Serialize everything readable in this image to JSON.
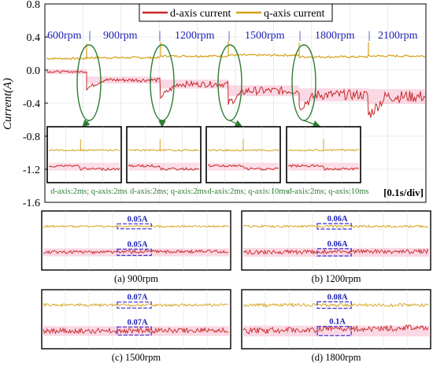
{
  "chart_data": {
    "type": "line",
    "main_plot": {
      "ylabel": "Current(A)",
      "y_ticks": [
        "0.8",
        "0.4",
        "0.0",
        "-0.4",
        "-0.8",
        "-1.2",
        "-1.6"
      ],
      "ylim": [
        -1.6,
        0.8
      ],
      "time_scale": "[0.1s/div]",
      "grid": true,
      "legend": {
        "placement": "top-center",
        "entries": [
          "d-axis current",
          "q-axis current"
        ]
      },
      "speed_labels": [
        "600rpm",
        "900rpm",
        "1200rpm",
        "1500rpm",
        "1800rpm",
        "2100rpm"
      ],
      "separator": "|",
      "series": [
        {
          "name": "q-axis current",
          "color": "#d4a017",
          "levels": [
            0.14,
            0.15,
            0.17,
            0.18,
            0.16,
            0.17
          ]
        },
        {
          "name": "d-axis current",
          "color": "#c62828",
          "levels": [
            -0.02,
            -0.12,
            -0.17,
            -0.25,
            -0.3,
            -0.32
          ]
        }
      ],
      "transient_peak_d": [
        -0.22,
        -0.32,
        -0.4,
        -0.45,
        -0.55
      ],
      "zoom_insets": [
        {
          "caption": "d-axis:2ms; q-axis:2ms"
        },
        {
          "caption": "d-axis:2ms; q-axis:2ms"
        },
        {
          "caption": "d-axis:2ms; q-axis:10ms"
        },
        {
          "caption": "d-axis:2ms; q-axis:10ms"
        }
      ]
    },
    "ripple_panels": [
      {
        "caption": "(a) 900rpm",
        "q_ripple": "0.05A",
        "d_ripple": "0.05A"
      },
      {
        "caption": "(b) 1200rpm",
        "q_ripple": "0.06A",
        "d_ripple": "0.06A"
      },
      {
        "caption": "(c) 1500rpm",
        "q_ripple": "0.07A",
        "d_ripple": "0.07A"
      },
      {
        "caption": "(d) 1800rpm",
        "q_ripple": "0.08A",
        "d_ripple": "0.1A"
      }
    ]
  },
  "colors": {
    "d_axis": "#c62828",
    "d_axis_band": "#f8c8d8",
    "q_axis": "#d4a017",
    "speed_label": "#1e23b4",
    "ellipse": "#2e7d32",
    "inset_caption": "#2e7d32",
    "ripple_label": "#1e23b4",
    "grid": "#d9d9d9"
  }
}
